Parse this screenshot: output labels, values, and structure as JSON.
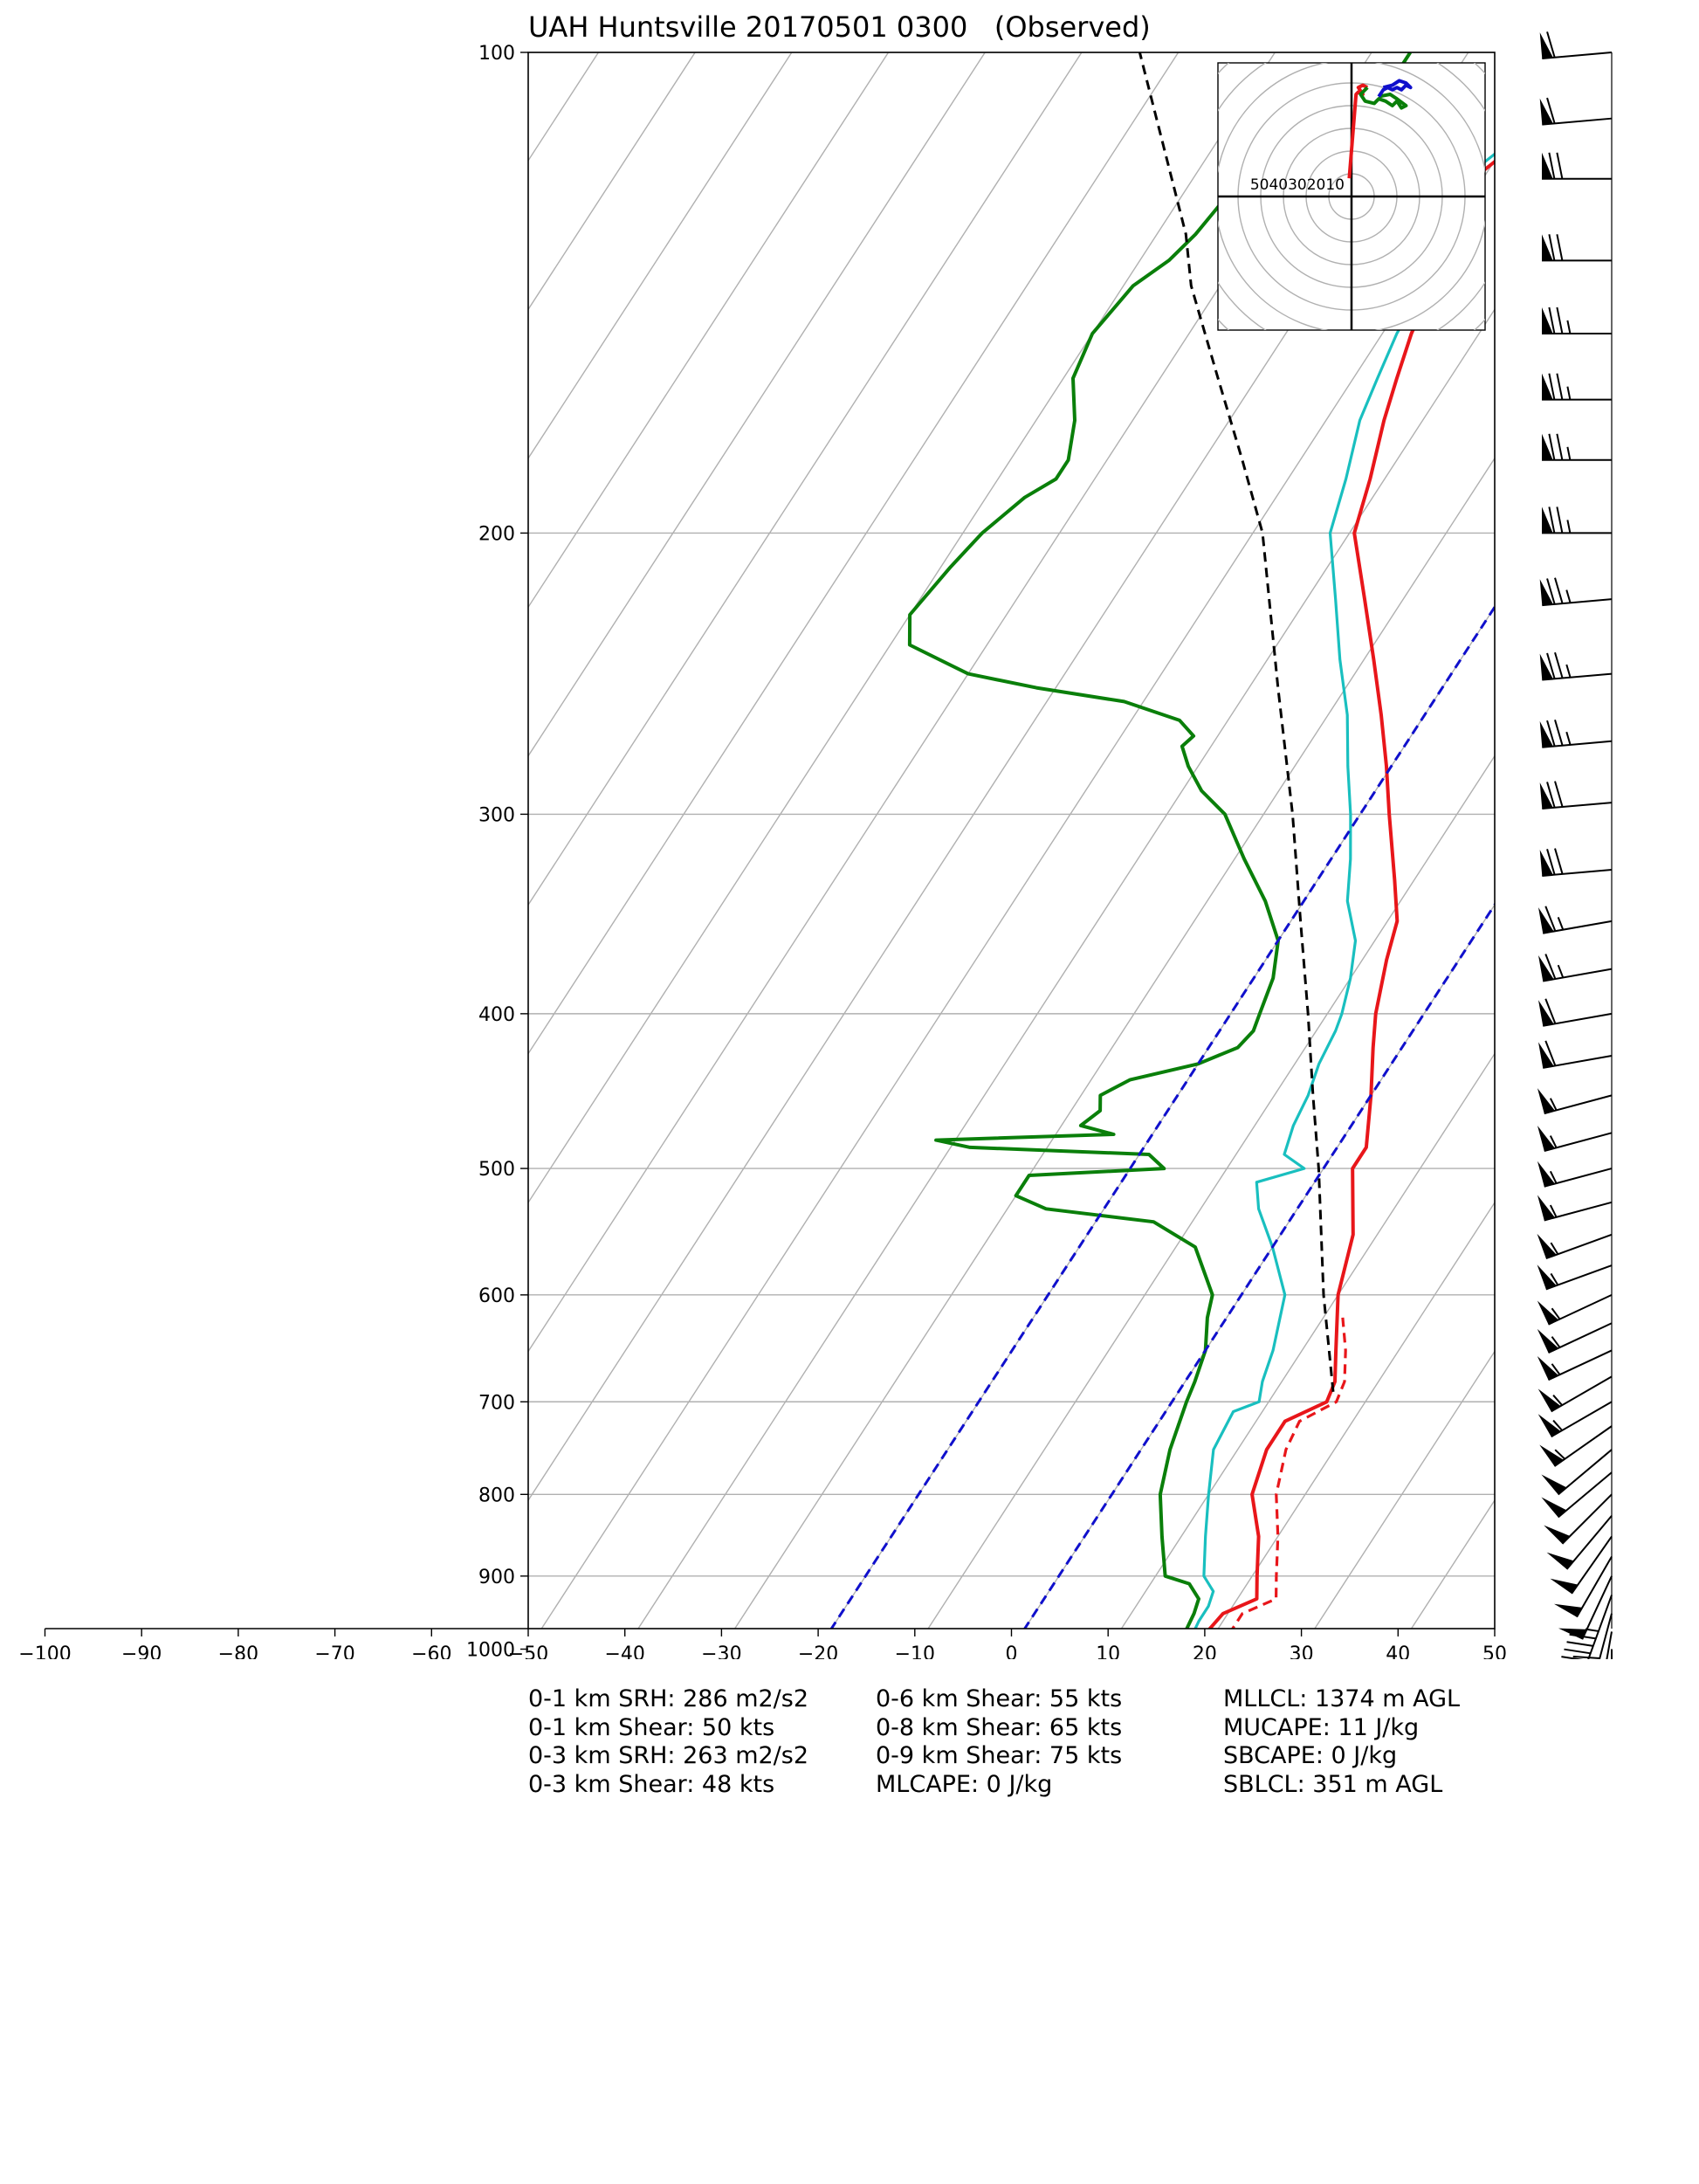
{
  "title": "UAH Huntsville 20170501 0300",
  "subtitle": "(Observed)",
  "colors": {
    "temperature": "#e8161a",
    "virtual_temperature": "#e8161a",
    "dewpoint": "#0a7f0a",
    "wetbulb": "#19bfbf",
    "parcel": "#000000",
    "lifted_index_lines": "#1010cc",
    "hodograph_low": "#e8161a",
    "hodograph_mid": "#0a7f0a",
    "hodograph_high": "#1010cc",
    "grid": "#b0b0b0"
  },
  "chart_data": {
    "type": "line",
    "kind": "skew-T log-p sounding",
    "y_scale": "log",
    "y_inverted": true,
    "ylim": [
      1050,
      100
    ],
    "xlim": [
      -50,
      50
    ],
    "y_ticks": [
      "100",
      "200",
      "300",
      "400",
      "500",
      "600",
      "700",
      "800",
      "900",
      "1000"
    ],
    "y_tick_values": [
      100,
      200,
      300,
      400,
      500,
      600,
      700,
      800,
      900,
      1000
    ],
    "x_ticks": [
      "−100",
      "−90",
      "−80",
      "−70",
      "−60",
      "−50",
      "−40",
      "−30",
      "−20",
      "−10",
      "0",
      "10",
      "20",
      "30",
      "40",
      "50"
    ],
    "x_tick_values": [
      -100,
      -90,
      -80,
      -70,
      -60,
      -50,
      -40,
      -30,
      -20,
      -10,
      0,
      10,
      20,
      30,
      40,
      50
    ],
    "grid": true,
    "series": [
      {
        "key": "temperature",
        "style": "solid",
        "points": [
          [
            1000,
            20.0
          ],
          [
            980,
            19.0
          ],
          [
            950,
            19.5
          ],
          [
            930,
            22.0
          ],
          [
            900,
            20.5
          ],
          [
            850,
            18.0
          ],
          [
            800,
            14.5
          ],
          [
            750,
            13.0
          ],
          [
            720,
            13.0
          ],
          [
            700,
            16.0
          ],
          [
            680,
            15.5
          ],
          [
            650,
            13.5
          ],
          [
            600,
            10.0
          ],
          [
            550,
            7.5
          ],
          [
            500,
            3.0
          ],
          [
            485,
            3.0
          ],
          [
            450,
            0.0
          ],
          [
            420,
            -3.0
          ],
          [
            400,
            -5.0
          ],
          [
            370,
            -7.5
          ],
          [
            350,
            -9.0
          ],
          [
            330,
            -12.0
          ],
          [
            300,
            -17.0
          ],
          [
            280,
            -20.5
          ],
          [
            260,
            -24.5
          ],
          [
            240,
            -29.0
          ],
          [
            220,
            -34.0
          ],
          [
            200,
            -39.5
          ],
          [
            185,
            -41.5
          ],
          [
            170,
            -44.0
          ],
          [
            160,
            -45.5
          ],
          [
            150,
            -47.0
          ],
          [
            140,
            -48.0
          ],
          [
            130,
            -49.5
          ],
          [
            122,
            -50.5
          ],
          [
            120,
            -51.0
          ],
          [
            112,
            -48.0
          ],
          [
            108,
            -45.0
          ],
          [
            105,
            -44.5
          ],
          [
            100,
            -43.5
          ]
        ]
      },
      {
        "key": "virtual_temperature",
        "style": "dashed",
        "points": [
          [
            1000,
            22.0
          ],
          [
            980,
            21.5
          ],
          [
            950,
            21.5
          ],
          [
            930,
            24.0
          ],
          [
            900,
            22.5
          ],
          [
            850,
            20.0
          ],
          [
            800,
            17.0
          ],
          [
            750,
            15.0
          ],
          [
            720,
            14.5
          ],
          [
            700,
            17.0
          ],
          [
            680,
            16.5
          ],
          [
            650,
            14.5
          ],
          [
            620,
            12.0
          ]
        ]
      },
      {
        "key": "dewpoint",
        "style": "solid",
        "points": [
          [
            1000,
            17.0
          ],
          [
            990,
            17.0
          ],
          [
            950,
            16.5
          ],
          [
            930,
            16.0
          ],
          [
            910,
            14.0
          ],
          [
            900,
            11.0
          ],
          [
            850,
            8.0
          ],
          [
            800,
            5.0
          ],
          [
            750,
            3.0
          ],
          [
            700,
            1.5
          ],
          [
            680,
            1.0
          ],
          [
            650,
            0.0
          ],
          [
            620,
            -2.0
          ],
          [
            600,
            -3.0
          ],
          [
            560,
            -8.0
          ],
          [
            540,
            -14.0
          ],
          [
            530,
            -26.0
          ],
          [
            520,
            -30.0
          ],
          [
            505,
            -30.0
          ],
          [
            500,
            -16.5
          ],
          [
            490,
            -19.0
          ],
          [
            485,
            -38.0
          ],
          [
            480,
            -42.0
          ],
          [
            476,
            -24.0
          ],
          [
            470,
            -28.0
          ],
          [
            460,
            -27.0
          ],
          [
            450,
            -28.0
          ],
          [
            440,
            -26.0
          ],
          [
            430,
            -20.0
          ],
          [
            420,
            -17.0
          ],
          [
            410,
            -16.5
          ],
          [
            400,
            -17.0
          ],
          [
            380,
            -18.0
          ],
          [
            360,
            -20.0
          ],
          [
            340,
            -24.0
          ],
          [
            320,
            -29.0
          ],
          [
            300,
            -34.0
          ],
          [
            290,
            -38.0
          ],
          [
            280,
            -41.0
          ],
          [
            272,
            -43.0
          ],
          [
            268,
            -42.5
          ],
          [
            262,
            -45.0
          ],
          [
            255,
            -52.0
          ],
          [
            250,
            -62.0
          ],
          [
            245,
            -70.0
          ],
          [
            235,
            -78.0
          ],
          [
            225,
            -80.0
          ],
          [
            210,
            -79.0
          ],
          [
            200,
            -78.0
          ],
          [
            190,
            -76.0
          ],
          [
            185,
            -74.0
          ],
          [
            180,
            -74.0
          ],
          [
            170,
            -76.0
          ],
          [
            160,
            -79.0
          ],
          [
            150,
            -80.0
          ],
          [
            140,
            -79.0
          ],
          [
            135,
            -77.0
          ],
          [
            130,
            -76.0
          ],
          [
            120,
            -75.0
          ],
          [
            115,
            -72.0
          ],
          [
            110,
            -70.0
          ],
          [
            106,
            -66.0
          ],
          [
            103,
            -66.0
          ],
          [
            100,
            -66.0
          ]
        ]
      },
      {
        "key": "wetbulb",
        "style": "solid",
        "points": [
          [
            1000,
            18.0
          ],
          [
            960,
            17.5
          ],
          [
            940,
            17.5
          ],
          [
            920,
            17.0
          ],
          [
            900,
            15.0
          ],
          [
            850,
            12.5
          ],
          [
            800,
            10.0
          ],
          [
            750,
            7.5
          ],
          [
            710,
            7.0
          ],
          [
            700,
            9.0
          ],
          [
            680,
            8.0
          ],
          [
            650,
            7.0
          ],
          [
            600,
            4.5
          ],
          [
            560,
            0.0
          ],
          [
            530,
            -4.0
          ],
          [
            510,
            -6.0
          ],
          [
            500,
            -2.0
          ],
          [
            490,
            -5.0
          ],
          [
            470,
            -6.0
          ],
          [
            450,
            -6.5
          ],
          [
            430,
            -7.5
          ],
          [
            410,
            -8.0
          ],
          [
            400,
            -8.5
          ],
          [
            380,
            -10.0
          ],
          [
            360,
            -12.0
          ],
          [
            340,
            -15.5
          ],
          [
            320,
            -18.0
          ],
          [
            300,
            -21.0
          ],
          [
            280,
            -24.5
          ],
          [
            260,
            -28.0
          ],
          [
            240,
            -32.5
          ],
          [
            220,
            -37.0
          ],
          [
            200,
            -42.0
          ],
          [
            185,
            -44.0
          ],
          [
            170,
            -46.5
          ],
          [
            160,
            -47.5
          ],
          [
            150,
            -48.5
          ],
          [
            140,
            -49.0
          ],
          [
            130,
            -50.5
          ],
          [
            122,
            -51.5
          ],
          [
            120,
            -52.0
          ],
          [
            112,
            -49.0
          ],
          [
            108,
            -46.0
          ],
          [
            105,
            -45.0
          ],
          [
            100,
            -44.0
          ]
        ]
      },
      {
        "key": "parcel",
        "style": "dashed",
        "points": [
          [
            690,
            16.0
          ],
          [
            600,
            8.5
          ],
          [
            500,
            -0.5
          ],
          [
            450,
            -6.0
          ],
          [
            400,
            -12.0
          ],
          [
            350,
            -19.0
          ],
          [
            300,
            -27.0
          ],
          [
            250,
            -37.0
          ],
          [
            200,
            -49.0
          ],
          [
            180,
            -56.0
          ],
          [
            160,
            -64.0
          ],
          [
            140,
            -73.0
          ],
          [
            130,
            -77.0
          ],
          [
            100,
            -94.0
          ]
        ]
      },
      {
        "key": "lifted_index_lines",
        "style": "dashed",
        "points": [
          [
            1050,
            -20.0
          ],
          [
            100,
            -20.0
          ]
        ]
      },
      {
        "key": "lifted_index_lines",
        "style": "dashed",
        "points": [
          [
            1050,
            0.0
          ],
          [
            100,
            0.0
          ]
        ]
      }
    ],
    "wind_barbs": [
      {
        "p": 100,
        "dir": 265,
        "spd": 60
      },
      {
        "p": 110,
        "dir": 265,
        "spd": 60
      },
      {
        "p": 120,
        "dir": 270,
        "spd": 70
      },
      {
        "p": 135,
        "dir": 270,
        "spd": 70
      },
      {
        "p": 150,
        "dir": 270,
        "spd": 75
      },
      {
        "p": 165,
        "dir": 270,
        "spd": 75
      },
      {
        "p": 180,
        "dir": 270,
        "spd": 75
      },
      {
        "p": 200,
        "dir": 270,
        "spd": 75
      },
      {
        "p": 220,
        "dir": 265,
        "spd": 75
      },
      {
        "p": 245,
        "dir": 265,
        "spd": 75
      },
      {
        "p": 270,
        "dir": 265,
        "spd": 75
      },
      {
        "p": 295,
        "dir": 265,
        "spd": 70
      },
      {
        "p": 325,
        "dir": 265,
        "spd": 70
      },
      {
        "p": 350,
        "dir": 260,
        "spd": 65
      },
      {
        "p": 375,
        "dir": 260,
        "spd": 65
      },
      {
        "p": 400,
        "dir": 260,
        "spd": 60
      },
      {
        "p": 425,
        "dir": 260,
        "spd": 60
      },
      {
        "p": 450,
        "dir": 255,
        "spd": 55
      },
      {
        "p": 475,
        "dir": 255,
        "spd": 55
      },
      {
        "p": 500,
        "dir": 255,
        "spd": 55
      },
      {
        "p": 525,
        "dir": 255,
        "spd": 55
      },
      {
        "p": 550,
        "dir": 250,
        "spd": 55
      },
      {
        "p": 575,
        "dir": 250,
        "spd": 55
      },
      {
        "p": 600,
        "dir": 245,
        "spd": 55
      },
      {
        "p": 625,
        "dir": 245,
        "spd": 55
      },
      {
        "p": 650,
        "dir": 245,
        "spd": 55
      },
      {
        "p": 675,
        "dir": 240,
        "spd": 55
      },
      {
        "p": 700,
        "dir": 240,
        "spd": 55
      },
      {
        "p": 725,
        "dir": 235,
        "spd": 55
      },
      {
        "p": 750,
        "dir": 230,
        "spd": 50
      },
      {
        "p": 775,
        "dir": 230,
        "spd": 50
      },
      {
        "p": 800,
        "dir": 225,
        "spd": 50
      },
      {
        "p": 825,
        "dir": 220,
        "spd": 50
      },
      {
        "p": 850,
        "dir": 215,
        "spd": 50
      },
      {
        "p": 875,
        "dir": 210,
        "spd": 50
      },
      {
        "p": 900,
        "dir": 205,
        "spd": 50
      },
      {
        "p": 925,
        "dir": 200,
        "spd": 45
      },
      {
        "p": 950,
        "dir": 195,
        "spd": 40
      },
      {
        "p": 975,
        "dir": 190,
        "spd": 30
      },
      {
        "p": 1000,
        "dir": 180,
        "spd": 20
      },
      {
        "p": 1020,
        "dir": 170,
        "spd": 10
      }
    ],
    "hodograph": {
      "ring_labels": [
        "50",
        "40",
        "30",
        "20",
        "10",
        "10"
      ],
      "ring_spacing_kts": 10,
      "segments": [
        {
          "key": "hodograph_low",
          "points": [
            [
              -1,
              8
            ],
            [
              2,
              45
            ],
            [
              3,
              46
            ],
            [
              5,
              45
            ],
            [
              3,
              48
            ],
            [
              5,
              49
            ],
            [
              7,
              48
            ]
          ]
        },
        {
          "key": "hodograph_mid",
          "points": [
            [
              7,
              48
            ],
            [
              4,
              45
            ],
            [
              6,
              42
            ],
            [
              10,
              41
            ],
            [
              12,
              43
            ],
            [
              15,
              42
            ],
            [
              18,
              40
            ],
            [
              20,
              42
            ],
            [
              22,
              39
            ],
            [
              24,
              40
            ],
            [
              20,
              43
            ],
            [
              17,
              45
            ],
            [
              12,
              44
            ]
          ]
        },
        {
          "key": "hodograph_high",
          "points": [
            [
              12,
              44
            ],
            [
              14,
              47
            ],
            [
              16,
              48
            ],
            [
              18,
              47
            ],
            [
              20,
              48
            ],
            [
              22,
              47
            ],
            [
              24,
              49
            ],
            [
              26,
              48
            ],
            [
              24,
              50
            ],
            [
              21,
              51
            ],
            [
              18,
              49
            ],
            [
              14,
              48
            ]
          ]
        }
      ]
    }
  },
  "stats": {
    "col1": [
      "0-1 km SRH: 286 m2/s2",
      "0-1 km Shear: 50 kts",
      "0-3 km SRH: 263 m2/s2",
      "0-3 km Shear: 48 kts"
    ],
    "col2": [
      "0-6 km Shear: 55 kts",
      "0-8 km Shear: 65 kts",
      "0-9 km Shear: 75 kts",
      "MLCAPE: 0 J/kg"
    ],
    "col3": [
      "MLLCL: 1374 m AGL",
      "MUCAPE: 11 J/kg",
      "SBCAPE: 0 J/kg",
      "SBLCL: 351 m AGL"
    ]
  }
}
